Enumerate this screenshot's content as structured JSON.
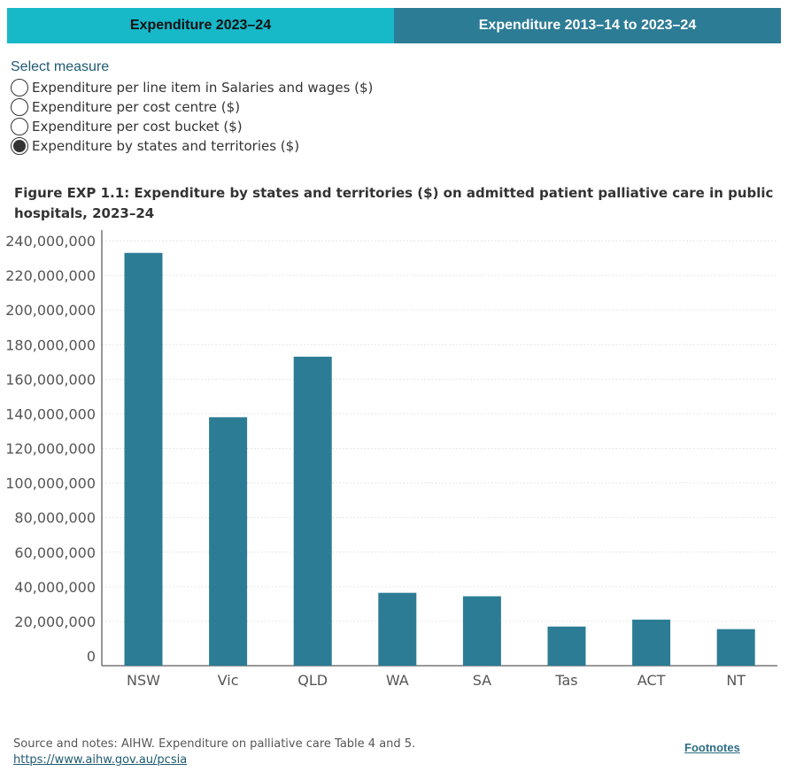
{
  "tabs": [
    {
      "label": "Expenditure 2023–24",
      "active": true
    },
    {
      "label": "Expenditure 2013–14 to 2023–24",
      "active": false
    }
  ],
  "selector": {
    "title": "Select measure",
    "options": [
      {
        "label": "Expenditure per line item in Salaries and wages ($)",
        "checked": false
      },
      {
        "label": "Expenditure per cost centre ($)",
        "checked": false
      },
      {
        "label": "Expenditure per cost bucket ($)",
        "checked": false
      },
      {
        "label": "Expenditure by states and territories ($)",
        "checked": true
      }
    ]
  },
  "chart_data": {
    "type": "bar",
    "title": "Figure EXP 1.1: Expenditure by states and territories ($) on admitted patient palliative care in public hospitals, 2023–24",
    "categories": [
      "NSW",
      "Vic",
      "QLD",
      "WA",
      "SA",
      "Tas",
      "ACT",
      "NT"
    ],
    "values": [
      233000000,
      138000000,
      173000000,
      36500000,
      34500000,
      17000000,
      21000000,
      15500000
    ],
    "xlabel": "",
    "ylabel": "",
    "ylim": [
      0,
      240000000
    ],
    "yticks": [
      "0",
      "20,000,000",
      "40,000,000",
      "60,000,000",
      "80,000,000",
      "100,000,000",
      "120,000,000",
      "140,000,000",
      "160,000,000",
      "180,000,000",
      "200,000,000",
      "220,000,000",
      "240,000,000"
    ],
    "grid": true,
    "bar_color": "#2c7c95"
  },
  "source": {
    "text": "Source and notes: AIHW. Expenditure on palliative care Table 4 and 5.",
    "link": "https://www.aihw.gov.au/pcsia"
  },
  "footnotes_label": "Footnotes",
  "colors": {
    "active_tab": "#17b8c8",
    "inactive_tab": "#2c7c95",
    "bar": "#2c7c95"
  }
}
